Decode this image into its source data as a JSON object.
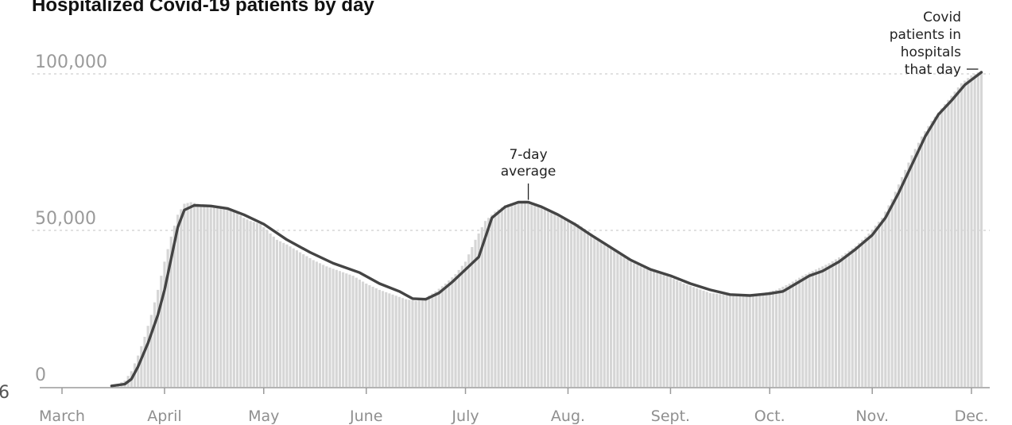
{
  "chart_data": {
    "type": "bar",
    "title": "Hospitalized Covid-19 patients by day",
    "xlabel": "",
    "ylabel": "",
    "ylim": [
      0,
      100000
    ],
    "y_ticks": [
      {
        "value": 0,
        "label": "0"
      },
      {
        "value": 50000,
        "label": "50,000"
      },
      {
        "value": 100000,
        "label": "100,000"
      }
    ],
    "x_ticks": [
      {
        "day": 0,
        "label": "March"
      },
      {
        "day": 31,
        "label": "April"
      },
      {
        "day": 61,
        "label": "May"
      },
      {
        "day": 92,
        "label": "June"
      },
      {
        "day": 122,
        "label": "July"
      },
      {
        "day": 153,
        "label": "Aug."
      },
      {
        "day": 184,
        "label": "Sept."
      },
      {
        "day": 214,
        "label": "Oct."
      },
      {
        "day": 245,
        "label": "Nov."
      },
      {
        "day": 275,
        "label": "Dec."
      }
    ],
    "x_domain": [
      0,
      280
    ],
    "series": [
      {
        "kind": "bars",
        "fill": "#d6d6d6",
        "values": [
          {
            "day": 15,
            "value": 500
          },
          {
            "day": 17,
            "value": 1000
          },
          {
            "day": 19,
            "value": 2000
          },
          {
            "day": 21,
            "value": 5000
          },
          {
            "day": 23,
            "value": 10000
          },
          {
            "day": 25,
            "value": 16000
          },
          {
            "day": 27,
            "value": 23000
          },
          {
            "day": 29,
            "value": 31000
          },
          {
            "day": 31,
            "value": 40000
          },
          {
            "day": 33,
            "value": 48000
          },
          {
            "day": 35,
            "value": 55000
          },
          {
            "day": 37,
            "value": 58500
          },
          {
            "day": 39,
            "value": 59000
          },
          {
            "day": 41,
            "value": 58500
          },
          {
            "day": 43,
            "value": 58000
          },
          {
            "day": 45,
            "value": 58000
          },
          {
            "day": 47,
            "value": 57500
          },
          {
            "day": 49,
            "value": 57000
          },
          {
            "day": 51,
            "value": 56500
          },
          {
            "day": 53,
            "value": 55500
          },
          {
            "day": 55,
            "value": 54000
          },
          {
            "day": 57,
            "value": 53000
          },
          {
            "day": 60,
            "value": 52000
          },
          {
            "day": 62,
            "value": 50000
          },
          {
            "day": 65,
            "value": 47000
          },
          {
            "day": 68,
            "value": 45500
          },
          {
            "day": 72,
            "value": 43000
          },
          {
            "day": 76,
            "value": 40500
          },
          {
            "day": 80,
            "value": 38500
          },
          {
            "day": 84,
            "value": 37000
          },
          {
            "day": 88,
            "value": 35500
          },
          {
            "day": 92,
            "value": 33000
          },
          {
            "day": 96,
            "value": 31000
          },
          {
            "day": 100,
            "value": 29500
          },
          {
            "day": 104,
            "value": 28000
          },
          {
            "day": 107,
            "value": 27500
          },
          {
            "day": 110,
            "value": 28500
          },
          {
            "day": 113,
            "value": 30500
          },
          {
            "day": 116,
            "value": 33000
          },
          {
            "day": 119,
            "value": 36000
          },
          {
            "day": 122,
            "value": 40000
          },
          {
            "day": 125,
            "value": 47000
          },
          {
            "day": 128,
            "value": 53000
          },
          {
            "day": 131,
            "value": 56000
          },
          {
            "day": 134,
            "value": 58000
          },
          {
            "day": 137,
            "value": 59000
          },
          {
            "day": 140,
            "value": 59500
          },
          {
            "day": 143,
            "value": 58500
          },
          {
            "day": 146,
            "value": 57000
          },
          {
            "day": 149,
            "value": 55500
          },
          {
            "day": 152,
            "value": 54000
          },
          {
            "day": 156,
            "value": 52000
          },
          {
            "day": 160,
            "value": 49000
          },
          {
            "day": 164,
            "value": 46000
          },
          {
            "day": 168,
            "value": 43000
          },
          {
            "day": 172,
            "value": 40000
          },
          {
            "day": 176,
            "value": 38000
          },
          {
            "day": 180,
            "value": 36500
          },
          {
            "day": 184,
            "value": 35000
          },
          {
            "day": 188,
            "value": 33000
          },
          {
            "day": 192,
            "value": 31500
          },
          {
            "day": 196,
            "value": 30000
          },
          {
            "day": 200,
            "value": 29500
          },
          {
            "day": 204,
            "value": 29000
          },
          {
            "day": 208,
            "value": 29500
          },
          {
            "day": 212,
            "value": 30000
          },
          {
            "day": 216,
            "value": 31000
          },
          {
            "day": 220,
            "value": 33000
          },
          {
            "day": 224,
            "value": 35500
          },
          {
            "day": 228,
            "value": 37500
          },
          {
            "day": 232,
            "value": 39500
          },
          {
            "day": 236,
            "value": 42000
          },
          {
            "day": 240,
            "value": 45000
          },
          {
            "day": 244,
            "value": 49000
          },
          {
            "day": 248,
            "value": 54000
          },
          {
            "day": 251,
            "value": 60000
          },
          {
            "day": 254,
            "value": 67000
          },
          {
            "day": 257,
            "value": 74000
          },
          {
            "day": 260,
            "value": 80000
          },
          {
            "day": 263,
            "value": 85000
          },
          {
            "day": 266,
            "value": 89000
          },
          {
            "day": 269,
            "value": 93000
          },
          {
            "day": 272,
            "value": 97000
          },
          {
            "day": 275,
            "value": 99500
          },
          {
            "day": 278,
            "value": 101000
          }
        ]
      },
      {
        "kind": "line",
        "stroke": "#444444",
        "points": [
          {
            "day": 15,
            "value": 300
          },
          {
            "day": 19,
            "value": 900
          },
          {
            "day": 21,
            "value": 2500
          },
          {
            "day": 23,
            "value": 6500
          },
          {
            "day": 26,
            "value": 14000
          },
          {
            "day": 29,
            "value": 23000
          },
          {
            "day": 31,
            "value": 31000
          },
          {
            "day": 33,
            "value": 41000
          },
          {
            "day": 35,
            "value": 51000
          },
          {
            "day": 37,
            "value": 56500
          },
          {
            "day": 40,
            "value": 58000
          },
          {
            "day": 45,
            "value": 57800
          },
          {
            "day": 50,
            "value": 57000
          },
          {
            "day": 55,
            "value": 55000
          },
          {
            "day": 61,
            "value": 52000
          },
          {
            "day": 68,
            "value": 47000
          },
          {
            "day": 75,
            "value": 43000
          },
          {
            "day": 82,
            "value": 39500
          },
          {
            "day": 90,
            "value": 36500
          },
          {
            "day": 96,
            "value": 33000
          },
          {
            "day": 102,
            "value": 30500
          },
          {
            "day": 106,
            "value": 28200
          },
          {
            "day": 110,
            "value": 28000
          },
          {
            "day": 114,
            "value": 30000
          },
          {
            "day": 118,
            "value": 33500
          },
          {
            "day": 122,
            "value": 37500
          },
          {
            "day": 126,
            "value": 41500
          },
          {
            "day": 130,
            "value": 54000
          },
          {
            "day": 134,
            "value": 57500
          },
          {
            "day": 138,
            "value": 59000
          },
          {
            "day": 141,
            "value": 59000
          },
          {
            "day": 145,
            "value": 57500
          },
          {
            "day": 150,
            "value": 55000
          },
          {
            "day": 155,
            "value": 52000
          },
          {
            "day": 160,
            "value": 48500
          },
          {
            "day": 166,
            "value": 44500
          },
          {
            "day": 172,
            "value": 40500
          },
          {
            "day": 178,
            "value": 37500
          },
          {
            "day": 184,
            "value": 35500
          },
          {
            "day": 190,
            "value": 33000
          },
          {
            "day": 196,
            "value": 31000
          },
          {
            "day": 202,
            "value": 29500
          },
          {
            "day": 208,
            "value": 29200
          },
          {
            "day": 214,
            "value": 29800
          },
          {
            "day": 218,
            "value": 30500
          },
          {
            "day": 222,
            "value": 33000
          },
          {
            "day": 226,
            "value": 35500
          },
          {
            "day": 230,
            "value": 37000
          },
          {
            "day": 235,
            "value": 40000
          },
          {
            "day": 240,
            "value": 44000
          },
          {
            "day": 245,
            "value": 48500
          },
          {
            "day": 249,
            "value": 54000
          },
          {
            "day": 253,
            "value": 62000
          },
          {
            "day": 257,
            "value": 71000
          },
          {
            "day": 261,
            "value": 80000
          },
          {
            "day": 265,
            "value": 87000
          },
          {
            "day": 269,
            "value": 91500
          },
          {
            "day": 273,
            "value": 96500
          },
          {
            "day": 278,
            "value": 100500
          }
        ]
      }
    ],
    "annotations": [
      {
        "name": "seven-day-average",
        "lines": [
          "7-day",
          "average"
        ],
        "anchor_day": 141,
        "anchor_value": 59000
      },
      {
        "name": "covid-patients",
        "lines": [
          "Covid",
          "patients in",
          "hospitals",
          "that day"
        ],
        "anchor_day": 278,
        "anchor_value": 100500
      }
    ],
    "stray_text": "6"
  },
  "colors": {
    "bars": "#d6d6d6",
    "line": "#444444",
    "grid": "#cfcfcf",
    "axis": "#9a9a9a",
    "tick_text": "#8f8f8f"
  }
}
